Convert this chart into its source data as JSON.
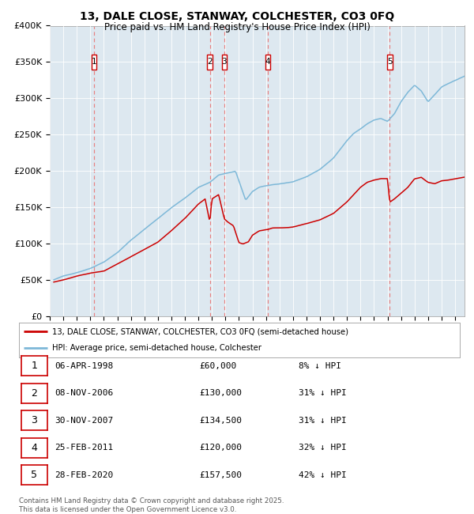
{
  "title_line1": "13, DALE CLOSE, STANWAY, COLCHESTER, CO3 0FQ",
  "title_line2": "Price paid vs. HM Land Registry's House Price Index (HPI)",
  "legend_line1": "13, DALE CLOSE, STANWAY, COLCHESTER, CO3 0FQ (semi-detached house)",
  "legend_line2": "HPI: Average price, semi-detached house, Colchester",
  "footer": "Contains HM Land Registry data © Crown copyright and database right 2025.\nThis data is licensed under the Open Government Licence v3.0.",
  "transactions": [
    {
      "num": 1,
      "date": "06-APR-1998",
      "year": 1998.27,
      "price": 60000,
      "hpi_pct": "8% ↓ HPI"
    },
    {
      "num": 2,
      "date": "08-NOV-2006",
      "year": 2006.85,
      "price": 130000,
      "hpi_pct": "31% ↓ HPI"
    },
    {
      "num": 3,
      "date": "30-NOV-2007",
      "year": 2007.92,
      "price": 134500,
      "hpi_pct": "31% ↓ HPI"
    },
    {
      "num": 4,
      "date": "25-FEB-2011",
      "year": 2011.15,
      "price": 120000,
      "hpi_pct": "32% ↓ HPI"
    },
    {
      "num": 5,
      "date": "28-FEB-2020",
      "year": 2020.16,
      "price": 157500,
      "hpi_pct": "42% ↓ HPI"
    }
  ],
  "hpi_color": "#7db8d8",
  "price_color": "#cc0000",
  "vline_color": "#e88080",
  "bg_color": "#dde8f0",
  "ylim": [
    0,
    400000
  ],
  "xlim_start": 1995.3,
  "xlim_end": 2025.7
}
